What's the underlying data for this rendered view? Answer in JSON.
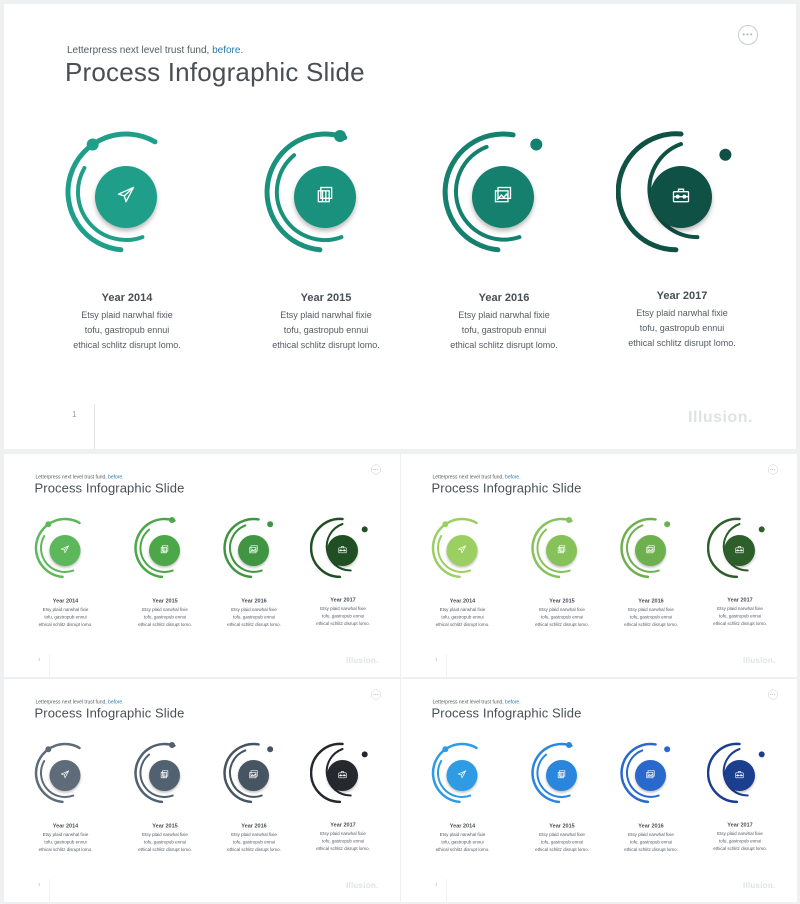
{
  "slide": {
    "subtitle": "Letterpress next level trust fund,",
    "subtitle_accent": "before.",
    "title": "Process Infographic Slide",
    "menu_icon": "ellipsis-icon",
    "page_number": "1",
    "brand": "Illusion.",
    "steps": [
      {
        "year": "Year 2014",
        "desc_lines": [
          "Etsy plaid  narwhal fixie",
          "tofu, gastropub ennui",
          "ethical schlitz disrupt lomo."
        ],
        "icon": "paper-plane-icon"
      },
      {
        "year": "Year 2015",
        "desc_lines": [
          "Etsy plaid  narwhal fixie",
          "tofu, gastropub ennui",
          "ethical schlitz disrupt lomo."
        ],
        "icon": "layers-icon"
      },
      {
        "year": "Year 2016",
        "desc_lines": [
          "Etsy plaid  narwhal fixie",
          "tofu, gastropub ennui",
          "ethical schlitz disrupt lomo."
        ],
        "icon": "image-icon"
      },
      {
        "year": "Year 2017",
        "desc_lines": [
          "Etsy plaid  narwhal fixie",
          "tofu, gastropub ennui",
          "ethical schlitz disrupt lomo."
        ],
        "icon": "briefcase-icon"
      }
    ]
  },
  "color_themes": [
    {
      "name": "teal",
      "palette": [
        "#1f9f89",
        "#1a917c",
        "#15806e",
        "#0f5245"
      ]
    },
    {
      "name": "green",
      "palette": [
        "#5cb85a",
        "#4ca749",
        "#3f9541",
        "#1f4f23"
      ]
    },
    {
      "name": "lime",
      "palette": [
        "#9ccf62",
        "#86c15a",
        "#6eb04e",
        "#2e5e2a"
      ]
    },
    {
      "name": "slate",
      "palette": [
        "#5d6c78",
        "#526170",
        "#475462",
        "#25292e"
      ]
    },
    {
      "name": "blue",
      "palette": [
        "#2e9be2",
        "#2a86dc",
        "#2769cd",
        "#1b3e8e"
      ]
    }
  ]
}
